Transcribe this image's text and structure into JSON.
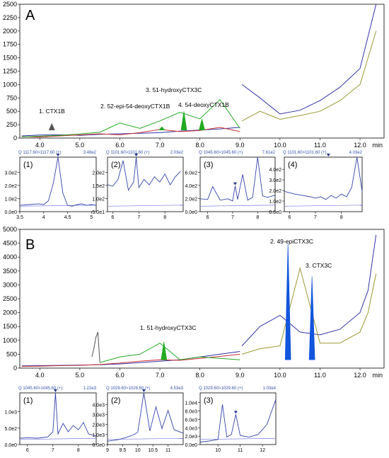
{
  "chart_data": [
    {
      "id": "A-main",
      "type": "line",
      "panel_label": "A",
      "x_unit": "min",
      "xlim": [
        3.5,
        12.6
      ],
      "ylim": [
        0,
        2500
      ],
      "x_ticks": [
        4.0,
        5.0,
        6.0,
        7.0,
        8.0,
        9.0,
        10.0,
        11.0,
        12.0
      ],
      "y_ticks": [
        0,
        250,
        500,
        750,
        1000,
        1250,
        1500,
        1750,
        2000,
        2250,
        2500
      ],
      "series": [
        {
          "color": "#3333aa",
          "x": [
            3.55,
            4.0,
            4.5,
            5.0,
            5.5,
            6.0,
            6.5,
            7.0,
            7.5,
            8.0,
            8.5,
            9.0
          ],
          "y": [
            40,
            55,
            60,
            50,
            70,
            80,
            90,
            100,
            130,
            150,
            170,
            200
          ]
        },
        {
          "color": "#cc3333",
          "x": [
            3.55,
            4.0,
            4.5,
            5.0,
            5.5,
            6.0,
            6.5,
            7.0,
            7.5,
            8.0,
            8.5,
            9.0
          ],
          "y": [
            30,
            20,
            40,
            60,
            80,
            60,
            100,
            160,
            120,
            140,
            200,
            120
          ]
        },
        {
          "color": "#22aa22",
          "x": [
            3.55,
            4.0,
            4.5,
            5.0,
            5.5,
            6.0,
            6.5,
            7.0,
            7.5,
            8.0,
            8.5,
            9.0
          ],
          "y": [
            25,
            35,
            50,
            75,
            110,
            280,
            180,
            320,
            480,
            360,
            720,
            180
          ]
        },
        {
          "color": "#3333aa",
          "x": [
            9.05,
            9.5,
            10.0,
            10.5,
            11.0,
            11.5,
            12.0,
            12.2,
            12.4
          ],
          "y": [
            1000,
            750,
            450,
            520,
            700,
            950,
            1300,
            1900,
            2500
          ]
        },
        {
          "color": "#999933",
          "x": [
            9.05,
            9.5,
            10.0,
            10.5,
            11.0,
            11.5,
            12.0,
            12.2,
            12.4
          ],
          "y": [
            320,
            500,
            350,
            420,
            500,
            700,
            1000,
            1500,
            2000
          ]
        }
      ],
      "peaks": [
        {
          "label": "1. CTX1B",
          "x": 4.3,
          "height": 270,
          "fill": "#555555"
        },
        {
          "label": "2. 52-epi-54-deoxyCTX1B",
          "x": 7.05,
          "height": 210,
          "fill": "#22aa22"
        },
        {
          "label": "3. 51-hydroxyCTX3C",
          "x": 7.6,
          "height": 500,
          "fill": "#22aa22"
        },
        {
          "label": "4. 54-deoxyCTX1B",
          "x": 8.05,
          "height": 360,
          "fill": "#22aa22"
        }
      ]
    },
    {
      "id": "A-inset-1",
      "type": "line",
      "inset_label": "(1)",
      "header_left": "Q 1117.60>1117.60 (+)",
      "header_right": "3.48e2",
      "xlim": [
        3.5,
        5.1
      ],
      "x_ticks": [
        3.5,
        4.0,
        4.5,
        5.0
      ],
      "ylim": [
        0,
        348
      ],
      "y_ticks": [
        "0.0e0",
        "1.0e2",
        "2.0e2",
        "3.0e2"
      ],
      "x": [
        3.5,
        3.7,
        3.9,
        4.0,
        4.1,
        4.2,
        4.3,
        4.4,
        4.5,
        4.6,
        4.7,
        4.8,
        4.9,
        5.0,
        5.1
      ],
      "y": [
        40,
        45,
        50,
        45,
        70,
        180,
        348,
        120,
        40,
        35,
        45,
        50,
        40,
        45,
        40
      ],
      "peak_x": 4.3
    },
    {
      "id": "A-inset-2",
      "type": "line",
      "inset_label": "(2)",
      "header_left": "Q 1101.60>1101.60 (+)",
      "header_right": "2.03e2",
      "xlim": [
        5.8,
        8.7
      ],
      "x_ticks": [
        6,
        7,
        8
      ],
      "ylim": [
        0,
        203
      ],
      "y_ticks": [
        "5.0e1",
        "1.0e2",
        "1.5e2",
        "2.0e2"
      ],
      "x": [
        5.8,
        6.0,
        6.2,
        6.4,
        6.6,
        6.8,
        6.9,
        7.0,
        7.2,
        7.4,
        7.6,
        7.8,
        8.0,
        8.2,
        8.4,
        8.6
      ],
      "y": [
        100,
        95,
        120,
        190,
        80,
        110,
        203,
        90,
        120,
        100,
        130,
        110,
        140,
        100,
        130,
        150
      ],
      "peak_x": 6.9
    },
    {
      "id": "A-inset-3",
      "type": "line",
      "inset_label": "(3)",
      "header_left": "Q 1045.60>1045.60 (+)",
      "header_right": "7.61e2",
      "xlim": [
        5.7,
        8.7
      ],
      "x_ticks": [
        6,
        7,
        8
      ],
      "ylim": [
        0,
        761
      ],
      "y_ticks": [
        "0.0e0",
        "2.0e2",
        "4.0e2",
        "6.0e2"
      ],
      "x": [
        5.7,
        6.0,
        6.2,
        6.5,
        6.8,
        7.0,
        7.1,
        7.2,
        7.4,
        7.6,
        7.8,
        8.0,
        8.2,
        8.4,
        8.7
      ],
      "y": [
        180,
        170,
        350,
        160,
        180,
        150,
        360,
        170,
        520,
        160,
        200,
        761,
        220,
        200,
        230
      ],
      "peak_x": 7.1
    },
    {
      "id": "A-inset-4",
      "type": "line",
      "inset_label": "(4)",
      "header_left": "Q 1101.60>1101.60 (+)",
      "header_right": "4.03e2",
      "xlim": [
        5.8,
        8.8
      ],
      "x_ticks": [
        6,
        7,
        8
      ],
      "ylim": [
        0,
        403
      ],
      "y_ticks": [
        "0.0e0",
        "1.0e2",
        "2.0e2",
        "3.0e2",
        "4.0e2"
      ],
      "x": [
        5.8,
        6.0,
        6.2,
        6.5,
        6.8,
        7.0,
        7.2,
        7.4,
        7.6,
        7.8,
        8.0,
        8.2,
        8.4,
        8.6,
        8.8
      ],
      "y": [
        150,
        140,
        130,
        120,
        110,
        100,
        110,
        90,
        120,
        100,
        130,
        110,
        180,
        403,
        150
      ],
      "peak_x": 7.5
    },
    {
      "id": "B-main",
      "type": "line",
      "panel_label": "B",
      "x_unit": "min",
      "xlim": [
        3.5,
        12.6
      ],
      "ylim": [
        0,
        5000
      ],
      "x_ticks": [
        4.0,
        5.0,
        6.0,
        7.0,
        8.0,
        9.0,
        10.0,
        11.0,
        12.0
      ],
      "y_ticks": [
        0,
        500,
        1000,
        1500,
        2000,
        2500,
        3000,
        3500,
        4000,
        4500,
        5000
      ],
      "series": [
        {
          "color": "#3333aa",
          "x": [
            3.55,
            4.0,
            4.5,
            5.0,
            5.5,
            6.0,
            6.5,
            7.0,
            7.5,
            8.0,
            8.5,
            9.0
          ],
          "y": [
            80,
            90,
            100,
            110,
            120,
            150,
            200,
            250,
            300,
            400,
            500,
            600
          ]
        },
        {
          "color": "#cc3333",
          "x": [
            3.55,
            4.0,
            4.5,
            5.0,
            5.5,
            6.0,
            6.5,
            7.0,
            7.5,
            8.0,
            8.5,
            9.0
          ],
          "y": [
            60,
            70,
            90,
            100,
            130,
            180,
            250,
            300,
            280,
            350,
            420,
            500
          ]
        },
        {
          "color": "#555555",
          "x": [
            5.3,
            5.35,
            5.4,
            5.45,
            5.5
          ],
          "y": [
            400,
            700,
            1100,
            1300,
            200
          ]
        },
        {
          "color": "#22aa22",
          "x": [
            5.5,
            6.0,
            6.5,
            7.0,
            7.5,
            8.0,
            8.5,
            9.0
          ],
          "y": [
            200,
            400,
            500,
            900,
            300,
            400,
            350,
            300
          ]
        },
        {
          "color": "#3333aa",
          "x": [
            9.05,
            9.5,
            10.0,
            10.5,
            11.0,
            11.5,
            12.0,
            12.2,
            12.4
          ],
          "y": [
            800,
            1500,
            1900,
            1300,
            1200,
            1400,
            2000,
            2800,
            4800
          ]
        },
        {
          "color": "#999933",
          "x": [
            9.05,
            9.5,
            10.0,
            10.5,
            11.0,
            11.5,
            12.0,
            12.2,
            12.4
          ],
          "y": [
            500,
            700,
            800,
            3600,
            900,
            900,
            1300,
            2000,
            3400
          ]
        }
      ],
      "peaks": [
        {
          "label": "1. 51-hydroxyCTX3C",
          "x": 7.1,
          "height": 950,
          "fill": "#22aa22"
        },
        {
          "label": "2. 49-epiCTX3C",
          "x": 10.2,
          "height": 4500,
          "fill": "#1155dd"
        },
        {
          "label": "3. CTX3C",
          "x": 10.8,
          "height": 3300,
          "fill": "#1155dd"
        }
      ]
    },
    {
      "id": "B-inset-1",
      "type": "line",
      "inset_label": "(1)",
      "header_left": "Q 1045.60>1045.60 (+)",
      "header_right": "1.22e3",
      "xlim": [
        5.7,
        8.7
      ],
      "x_ticks": [
        6,
        7,
        8
      ],
      "ylim": [
        0,
        1220
      ],
      "y_ticks": [
        "0.0e0",
        "5.0e2",
        "1.0e3"
      ],
      "x": [
        5.7,
        6.0,
        6.4,
        6.8,
        7.0,
        7.1,
        7.2,
        7.4,
        7.6,
        7.8,
        8.0,
        8.2,
        8.4,
        8.7
      ],
      "y": [
        150,
        160,
        150,
        180,
        300,
        1220,
        250,
        500,
        300,
        450,
        350,
        520,
        250,
        200
      ],
      "peak_x": 7.1
    },
    {
      "id": "B-inset-2",
      "type": "line",
      "inset_label": "(2)",
      "header_left": "Q 1029.60>1029.60 (+)",
      "header_right": "4.53e3",
      "xlim": [
        9.0,
        11.5
      ],
      "x_ticks": [
        9.0,
        9.5,
        10.0,
        10.5,
        11.0
      ],
      "ylim": [
        0,
        4530
      ],
      "y_ticks": [
        "0.0e0",
        "1.0e3",
        "2.0e3",
        "3.0e3",
        "4.0e3"
      ],
      "x": [
        9.0,
        9.3,
        9.6,
        9.9,
        10.0,
        10.2,
        10.4,
        10.6,
        10.8,
        11.0,
        11.2,
        11.5
      ],
      "y": [
        300,
        400,
        600,
        900,
        1100,
        4530,
        1200,
        3300,
        1400,
        3000,
        1300,
        1000
      ],
      "peak_x": 10.2
    },
    {
      "id": "B-inset-3",
      "type": "line",
      "inset_label": "(3)",
      "header_left": "Q 1029.60>1029.60 (+)",
      "header_right": "1.03e4",
      "xlim": [
        9.2,
        12.6
      ],
      "x_ticks": [
        10,
        11,
        12
      ],
      "ylim": [
        0,
        10300
      ],
      "y_ticks": [
        "0.0e0",
        "2.0e3",
        "4.0e3",
        "6.0e3",
        "8.0e3",
        "1.0e4"
      ],
      "x": [
        9.2,
        9.6,
        10.0,
        10.2,
        10.4,
        10.6,
        10.8,
        11.0,
        11.4,
        11.8,
        12.2,
        12.6
      ],
      "y": [
        500,
        700,
        1000,
        8000,
        1500,
        2000,
        6000,
        1800,
        1500,
        2000,
        4000,
        9000
      ],
      "peak_x": 10.8
    }
  ]
}
